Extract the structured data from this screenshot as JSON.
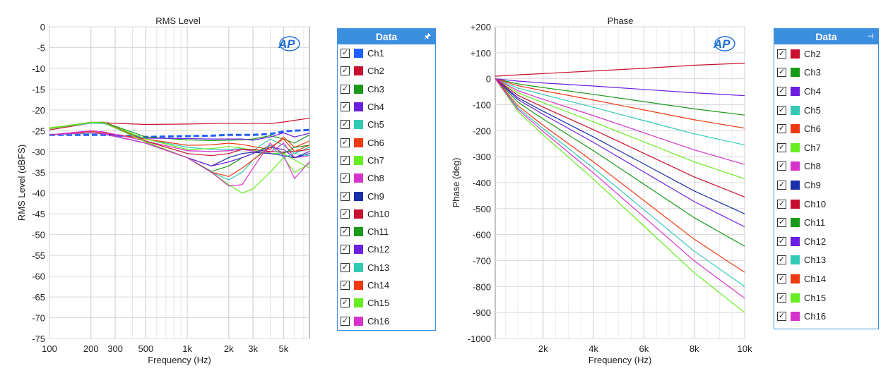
{
  "colors": {
    "Ch1": "#1f5fff",
    "Ch2": "#c8102e",
    "Ch3": "#1a9a1a",
    "Ch4": "#6a1fe0",
    "Ch5": "#33c9b5",
    "Ch6": "#ee3a12",
    "Ch7": "#66ee22",
    "Ch8": "#d633cc",
    "Ch9": "#1a2ea8",
    "Ch10": "#c8102e",
    "Ch11": "#1a9a1a",
    "Ch12": "#6a1fe0",
    "Ch13": "#33c9b5",
    "Ch14": "#ee3a12",
    "Ch15": "#66ee22",
    "Ch16": "#d633cc"
  },
  "legend_header": "Data",
  "logo": "AP",
  "chart_data": [
    {
      "type": "line",
      "title": "RMS Level",
      "xlabel": "Frequency (Hz)",
      "ylabel": "RMS Level (dBFS)",
      "xscale": "log",
      "xlim": [
        100,
        7700
      ],
      "ylim": [
        -75,
        0
      ],
      "grid": true,
      "legend": "right",
      "yticks": [
        "0",
        "-5",
        "-10",
        "-15",
        "-20",
        "-25",
        "-30",
        "-35",
        "-40",
        "-45",
        "-50",
        "-55",
        "-60",
        "-65",
        "-70",
        "-75"
      ],
      "xticks": [
        {
          "v": 100,
          "l": "100"
        },
        {
          "v": 200,
          "l": "200"
        },
        {
          "v": 300,
          "l": "300"
        },
        {
          "v": 500,
          "l": "500"
        },
        {
          "v": 1000,
          "l": "1k"
        },
        {
          "v": 2000,
          "l": "2k"
        },
        {
          "v": 3000,
          "l": "3k"
        },
        {
          "v": 5000,
          "l": "5k"
        }
      ],
      "x": [
        100,
        200,
        250,
        500,
        1000,
        1500,
        2000,
        2500,
        3000,
        4000,
        5000,
        6000,
        7700
      ],
      "series": [
        {
          "name": "Ch1",
          "dashed": true,
          "values": [
            -26,
            -26,
            -26,
            -26.5,
            -26.3,
            -26.2,
            -26,
            -26,
            -26,
            -25.8,
            -25.2,
            -25,
            -24.8
          ]
        },
        {
          "name": "Ch2",
          "values": [
            -24.8,
            -23.2,
            -23.1,
            -23.5,
            -23.4,
            -23.3,
            -23.2,
            -23.3,
            -23.2,
            -23.3,
            -22.9,
            -22.5,
            -22
          ]
        },
        {
          "name": "Ch3",
          "values": [
            -24.5,
            -23,
            -23,
            -26.5,
            -27.2,
            -27.4,
            -27.3,
            -27.2,
            -27,
            -26.2,
            -27,
            -28,
            -26
          ]
        },
        {
          "name": "Ch4",
          "values": [
            -26,
            -25.5,
            -25.8,
            -26.8,
            -26.9,
            -27,
            -27,
            -27,
            -27.3,
            -26.5,
            -25.5,
            -26.5,
            -25.6
          ]
        },
        {
          "name": "Ch5",
          "values": [
            -24.5,
            -23.2,
            -23.3,
            -27,
            -29,
            -29.5,
            -29.5,
            -29.3,
            -29.8,
            -27,
            -28.5,
            -30.5,
            -29
          ]
        },
        {
          "name": "Ch6",
          "values": [
            -26,
            -25.2,
            -25.5,
            -27,
            -28.5,
            -28.4,
            -28,
            -28.3,
            -28.8,
            -29.5,
            -26.5,
            -29,
            -27.5
          ]
        },
        {
          "name": "Ch7",
          "values": [
            -24.3,
            -23,
            -23.1,
            -27,
            -29.5,
            -29.3,
            -28.8,
            -29.2,
            -29.7,
            -30.5,
            -30.5,
            -32,
            -34
          ]
        },
        {
          "name": "Ch8",
          "values": [
            -26,
            -25,
            -25.3,
            -27.5,
            -29.8,
            -30,
            -29.8,
            -29.5,
            -29.9,
            -30.2,
            -28,
            -31.5,
            -31
          ]
        },
        {
          "name": "Ch9",
          "values": [
            -26,
            -25.5,
            -25.8,
            -28,
            -31.5,
            -33.5,
            -31.5,
            -30.5,
            -30.2,
            -30.5,
            -31,
            -31.5,
            -30.5
          ]
        },
        {
          "name": "Ch10",
          "values": [
            -24.5,
            -23,
            -23,
            -27.5,
            -30.5,
            -31,
            -30.5,
            -29.5,
            -29.5,
            -30,
            -30.2,
            -30,
            -29.5
          ]
        },
        {
          "name": "Ch11",
          "values": [
            -24.5,
            -23,
            -23.1,
            -27.7,
            -31.5,
            -34.8,
            -33.5,
            -31.5,
            -30.5,
            -28.5,
            -30.5,
            -29,
            -28.5
          ]
        },
        {
          "name": "Ch12",
          "values": [
            -26,
            -25.5,
            -25.7,
            -28,
            -31.5,
            -33.5,
            -32.5,
            -31.5,
            -30.5,
            -29,
            -29.5,
            -31.5,
            -30
          ]
        },
        {
          "name": "Ch13",
          "values": [
            -26,
            -25.6,
            -25.8,
            -28,
            -31.5,
            -35,
            -36.8,
            -35,
            -32,
            -28.5,
            -31.5,
            -30.5,
            -31
          ]
        },
        {
          "name": "Ch14",
          "values": [
            -24.5,
            -23,
            -23.1,
            -27.7,
            -31.5,
            -35,
            -36,
            -34,
            -32,
            -29,
            -27,
            -30,
            -28.5
          ]
        },
        {
          "name": "Ch15",
          "values": [
            -24.5,
            -23,
            -23.1,
            -27.7,
            -31.5,
            -35,
            -38,
            -40,
            -39,
            -35,
            -31.5,
            -35,
            -33
          ]
        },
        {
          "name": "Ch16",
          "values": [
            -26,
            -25.5,
            -25.8,
            -28,
            -31.5,
            -35,
            -38.3,
            -38,
            -34,
            -28,
            -31,
            -36.5,
            -32.5
          ]
        }
      ]
    },
    {
      "type": "line",
      "title": "Phase",
      "xlabel": "Frequency (Hz)",
      "ylabel": "Phase (deg)",
      "xscale": "linear",
      "xlim": [
        100,
        10000
      ],
      "ylim": [
        -1000,
        200
      ],
      "grid": true,
      "legend": "right",
      "yticks": [
        "+200",
        "+100",
        "0",
        "-100",
        "-200",
        "-300",
        "-400",
        "-500",
        "-600",
        "-700",
        "-800",
        "-900",
        "-1000"
      ],
      "xticks": [
        {
          "v": 2000,
          "l": "2k"
        },
        {
          "v": 4000,
          "l": "4k"
        },
        {
          "v": 6000,
          "l": "6k"
        },
        {
          "v": 8000,
          "l": "8k"
        },
        {
          "v": 10000,
          "l": "10k"
        }
      ],
      "x": [
        100,
        1000,
        2000,
        4000,
        6000,
        8000,
        10000
      ],
      "series": [
        {
          "name": "Ch2",
          "values": [
            10,
            15,
            20,
            30,
            40,
            52,
            60
          ]
        },
        {
          "name": "Ch3",
          "values": [
            0,
            -20,
            -34,
            -60,
            -88,
            -116,
            -140
          ]
        },
        {
          "name": "Ch4",
          "values": [
            0,
            -9,
            -16,
            -28,
            -41,
            -54,
            -65
          ]
        },
        {
          "name": "Ch5",
          "values": [
            0,
            -36,
            -61,
            -110,
            -161,
            -212,
            -255
          ]
        },
        {
          "name": "Ch6",
          "values": [
            0,
            -27,
            -46,
            -82,
            -120,
            -158,
            -190
          ]
        },
        {
          "name": "Ch7",
          "values": [
            0,
            -54,
            -92,
            -166,
            -243,
            -320,
            -385
          ]
        },
        {
          "name": "Ch8",
          "values": [
            0,
            -46,
            -79,
            -142,
            -208,
            -274,
            -330
          ]
        },
        {
          "name": "Ch9",
          "values": [
            0,
            -73,
            -125,
            -224,
            -328,
            -432,
            -520
          ]
        },
        {
          "name": "Ch10",
          "values": [
            0,
            -64,
            -109,
            -196,
            -287,
            -378,
            -455
          ]
        },
        {
          "name": "Ch11",
          "values": [
            0,
            -90,
            -155,
            -277,
            -406,
            -535,
            -645
          ]
        },
        {
          "name": "Ch12",
          "values": [
            0,
            -80,
            -137,
            -245,
            -359,
            -473,
            -570
          ]
        },
        {
          "name": "Ch13",
          "values": [
            0,
            -112,
            -192,
            -344,
            -504,
            -664,
            -800
          ]
        },
        {
          "name": "Ch14",
          "values": [
            0,
            -104,
            -179,
            -320,
            -469,
            -618,
            -745
          ]
        },
        {
          "name": "Ch15",
          "values": [
            0,
            -126,
            -216,
            -387,
            -567,
            -747,
            -900
          ]
        },
        {
          "name": "Ch16",
          "values": [
            0,
            -118,
            -203,
            -363,
            -532,
            -701,
            -845
          ]
        }
      ]
    }
  ]
}
